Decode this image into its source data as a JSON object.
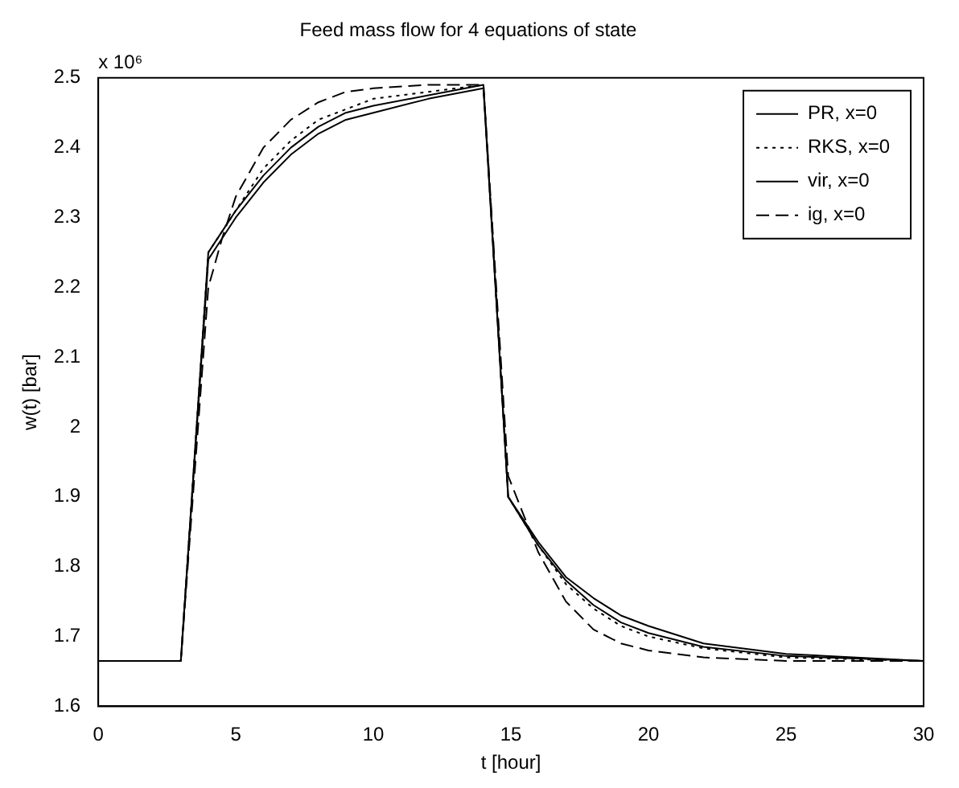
{
  "chart_data": {
    "type": "line",
    "title": "Feed mass flow for 4 equations of state",
    "xlabel": "t [hour]",
    "ylabel": "w(t) [bar]",
    "annotations": [
      "x 10⁶"
    ],
    "xlim": [
      0,
      30
    ],
    "xticks": [
      0,
      5,
      10,
      15,
      20,
      25,
      30
    ],
    "ylim": [
      1.6,
      2.5
    ],
    "yticks": [
      1.6,
      1.7,
      1.8,
      1.9,
      2,
      2.1,
      2.2,
      2.3,
      2.4,
      2.5
    ],
    "grid": false,
    "legend": "top right",
    "marker": "none",
    "x": [
      0,
      3,
      4,
      4.5,
      5,
      6,
      7,
      8,
      9,
      10,
      12,
      14,
      14.9,
      16,
      17,
      18,
      19,
      20,
      22,
      25,
      30
    ],
    "series": [
      {
        "name": "PR, x=0",
        "color": "#000000",
        "line_style": "solid",
        "values": [
          1.665,
          1.665,
          2.25,
          2.28,
          2.31,
          2.36,
          2.4,
          2.43,
          2.45,
          2.46,
          2.475,
          2.49,
          1.9,
          1.83,
          1.78,
          1.745,
          1.72,
          1.705,
          1.685,
          1.672,
          1.665
        ]
      },
      {
        "name": "RKS, x=0",
        "color": "#000000",
        "line_style": "dotted",
        "values": [
          1.665,
          1.665,
          2.25,
          2.28,
          2.31,
          2.37,
          2.41,
          2.44,
          2.455,
          2.47,
          2.48,
          2.49,
          1.9,
          1.83,
          1.775,
          1.74,
          1.715,
          1.7,
          1.683,
          1.67,
          1.665
        ]
      },
      {
        "name": "vir, x=0",
        "color": "#000000",
        "line_style": "solid",
        "values": [
          1.665,
          1.665,
          2.24,
          2.27,
          2.3,
          2.35,
          2.39,
          2.42,
          2.44,
          2.45,
          2.47,
          2.485,
          1.9,
          1.835,
          1.785,
          1.755,
          1.73,
          1.715,
          1.69,
          1.675,
          1.665
        ]
      },
      {
        "name": "ig, x=0",
        "color": "#000000",
        "line_style": "dashed",
        "values": [
          1.665,
          1.665,
          2.2,
          2.27,
          2.33,
          2.4,
          2.44,
          2.465,
          2.48,
          2.485,
          2.49,
          2.49,
          1.93,
          1.82,
          1.75,
          1.71,
          1.69,
          1.68,
          1.67,
          1.665,
          1.665
        ]
      }
    ]
  }
}
